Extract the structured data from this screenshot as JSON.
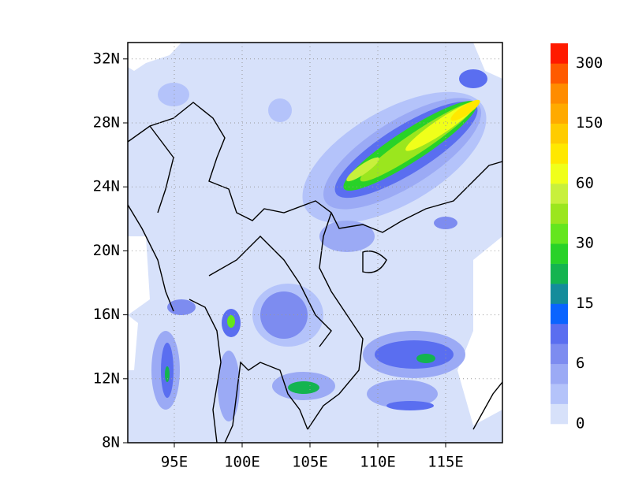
{
  "map": {
    "lon_ticks": [
      "95E",
      "100E",
      "105E",
      "110E",
      "115E"
    ],
    "lat_ticks": [
      "8N",
      "12N",
      "16N",
      "20N",
      "24N",
      "28N",
      "32N"
    ],
    "colorbar": {
      "colors": [
        "#d7e1fa",
        "#b4c3fa",
        "#9baaf5",
        "#7d8cf0",
        "#5a6ef0",
        "#0a64ff",
        "#148c9b",
        "#14b450",
        "#28d228",
        "#64e61e",
        "#9be61e",
        "#c8f03c",
        "#f0ff1a",
        "#ffe800",
        "#ffcc00",
        "#ffaa00",
        "#ff8c00",
        "#ff5a00",
        "#ff1a00"
      ],
      "labels": [
        "0",
        "6",
        "15",
        "30",
        "60",
        "150",
        "300"
      ]
    }
  }
}
